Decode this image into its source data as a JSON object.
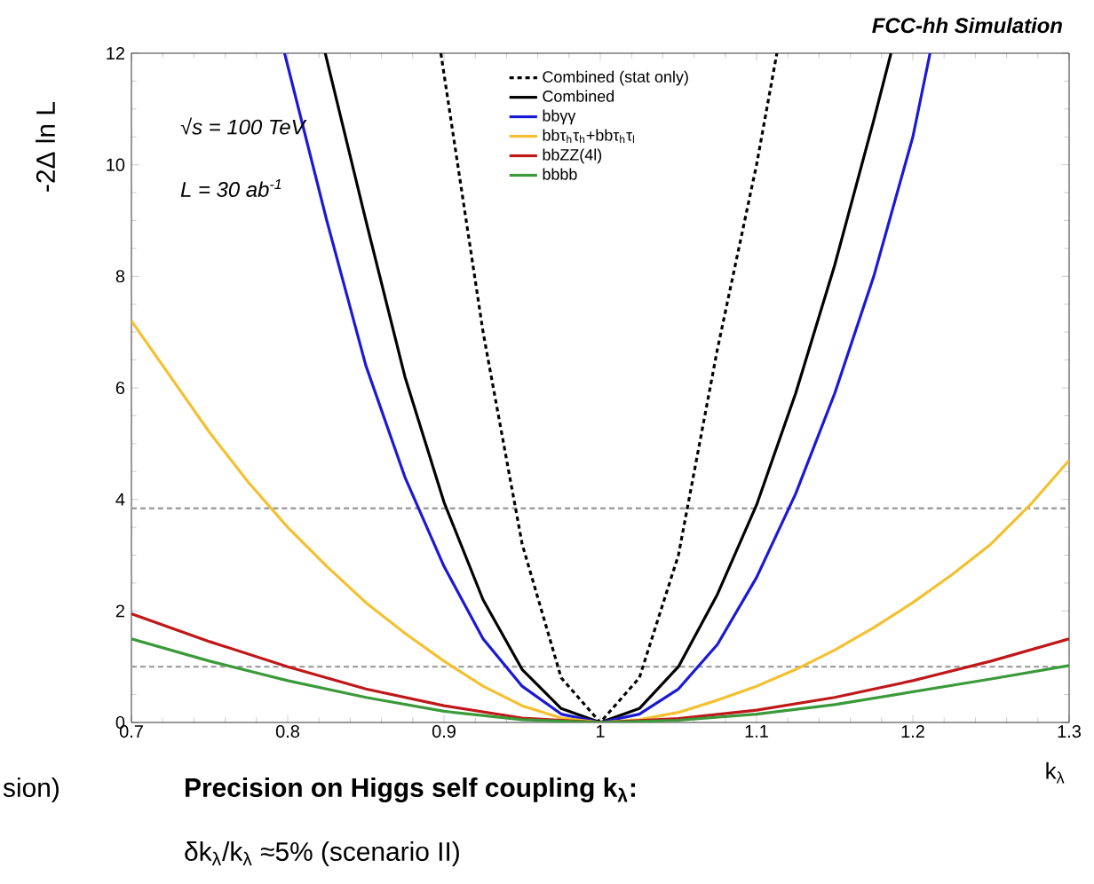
{
  "chart_data": {
    "type": "line",
    "title": "FCC-hh Simulation",
    "xlabel": "k$_{λ}$",
    "ylabel": "-2Δ ln L",
    "xlim": [
      0.7,
      1.3
    ],
    "ylim": [
      0,
      12
    ],
    "xticks": [
      0.7,
      0.8,
      0.9,
      1,
      1.1,
      1.2,
      1.3
    ],
    "yticks": [
      0,
      2,
      4,
      6,
      8,
      10,
      12
    ],
    "legend": "top",
    "grid": false,
    "series": [
      {
        "name": "Combined (stat only)",
        "color": "#000000",
        "line_style": "dotted",
        "x": [
          0.898,
          0.925,
          0.95,
          0.975,
          1.0,
          1.025,
          1.05,
          1.075,
          1.1,
          1.113
        ],
        "values": [
          12,
          7.0,
          3.2,
          0.8,
          0,
          0.8,
          3.0,
          6.7,
          10.0,
          12
        ]
      },
      {
        "name": "Combined",
        "color": "#000000",
        "line_style": "solid",
        "x": [
          0.824,
          0.85,
          0.875,
          0.9,
          0.925,
          0.95,
          0.975,
          1.0,
          1.025,
          1.05,
          1.075,
          1.1,
          1.125,
          1.15,
          1.175,
          1.186
        ],
        "values": [
          12,
          9.0,
          6.2,
          3.95,
          2.2,
          0.95,
          0.25,
          0,
          0.25,
          1.0,
          2.3,
          3.9,
          5.9,
          8.2,
          10.8,
          12
        ]
      },
      {
        "name": "bbγγ",
        "color": "#1a1ad6",
        "line_style": "solid",
        "x": [
          0.798,
          0.825,
          0.85,
          0.875,
          0.9,
          0.925,
          0.95,
          0.975,
          1.0,
          1.025,
          1.05,
          1.075,
          1.1,
          1.125,
          1.15,
          1.175,
          1.2,
          1.211
        ],
        "values": [
          12,
          9.0,
          6.4,
          4.4,
          2.8,
          1.5,
          0.65,
          0.15,
          0,
          0.15,
          0.6,
          1.4,
          2.6,
          4.1,
          5.9,
          8.0,
          10.5,
          12
        ]
      },
      {
        "name": "bbτ$_{h}$τ$_{h}$+bbτ$_{h}$τ$_{l}$",
        "color": "#f5c030",
        "line_style": "solid",
        "x": [
          0.7,
          0.725,
          0.75,
          0.775,
          0.8,
          0.825,
          0.85,
          0.875,
          0.9,
          0.925,
          0.95,
          0.975,
          1.0,
          1.025,
          1.05,
          1.075,
          1.1,
          1.125,
          1.15,
          1.175,
          1.2,
          1.225,
          1.25,
          1.275,
          1.3
        ],
        "values": [
          7.2,
          6.2,
          5.2,
          4.3,
          3.5,
          2.8,
          2.15,
          1.6,
          1.1,
          0.65,
          0.3,
          0.08,
          0,
          0.05,
          0.18,
          0.4,
          0.65,
          0.95,
          1.3,
          1.7,
          2.15,
          2.65,
          3.2,
          3.9,
          4.7
        ]
      },
      {
        "name": "bbZZ(4l)",
        "color": "#c01818",
        "line_style": "solid",
        "x": [
          0.7,
          0.75,
          0.8,
          0.85,
          0.9,
          0.95,
          1.0,
          1.05,
          1.1,
          1.15,
          1.2,
          1.25,
          1.3
        ],
        "values": [
          1.95,
          1.45,
          1.0,
          0.6,
          0.3,
          0.08,
          0,
          0.07,
          0.22,
          0.45,
          0.75,
          1.1,
          1.5
        ]
      },
      {
        "name": "bbbb",
        "color": "#3a9a3a",
        "line_style": "solid",
        "x": [
          0.7,
          0.75,
          0.8,
          0.85,
          0.9,
          0.95,
          1.0,
          1.05,
          1.1,
          1.15,
          1.2,
          1.25,
          1.3
        ],
        "values": [
          1.5,
          1.1,
          0.75,
          0.45,
          0.2,
          0.05,
          0,
          0.04,
          0.15,
          0.32,
          0.55,
          0.78,
          1.02
        ]
      }
    ],
    "ref_lines": [
      {
        "axis": "y",
        "value": 1,
        "color": "#a0a0a0",
        "line_style": "dashed"
      },
      {
        "axis": "y",
        "value": 3.84,
        "color": "#a0a0a0",
        "line_style": "dashed"
      }
    ],
    "annotations": [
      "√s = 100 TeV",
      "L = 30 ab$^{-1}$",
      "Precision on Higgs self coupling k$_{λ}$:",
      "δk$_{λ}$/k$_{λ}$ ≈5% (scenario II)",
      "sion)"
    ]
  }
}
